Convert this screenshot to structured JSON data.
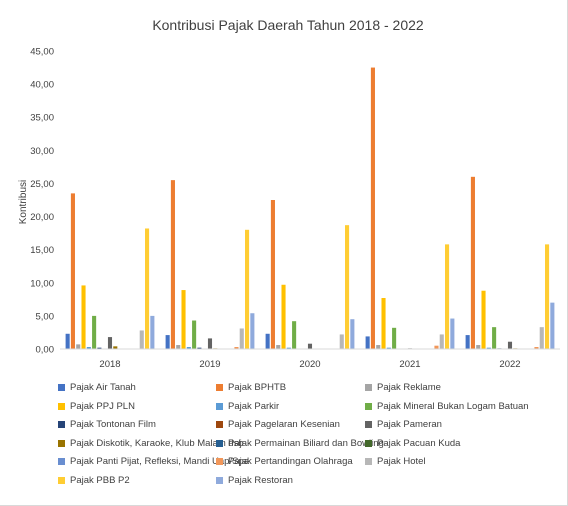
{
  "chart_data": {
    "type": "bar",
    "title": "Kontribusi Pajak Daerah Tahun 2018 - 2022",
    "xlabel": "",
    "ylabel": "Kontribusi",
    "ylim": [
      0,
      45
    ],
    "yticks": [
      "0,00",
      "5,00",
      "10,00",
      "15,00",
      "20,00",
      "25,00",
      "30,00",
      "35,00",
      "40,00",
      "45,00"
    ],
    "categories": [
      "2018",
      "2019",
      "2020",
      "2021",
      "2022"
    ],
    "grid": false,
    "legend_position": "bottom",
    "series": [
      {
        "name": "Pajak Air Tanah",
        "color": "#4472C4",
        "values": [
          2.3,
          2.1,
          2.3,
          1.9,
          2.1
        ]
      },
      {
        "name": "Pajak BPHTB",
        "color": "#ED7D31",
        "values": [
          23.5,
          25.5,
          22.5,
          42.5,
          26.0
        ]
      },
      {
        "name": "Pajak Reklame",
        "color": "#A5A5A5",
        "values": [
          0.7,
          0.6,
          0.6,
          0.6,
          0.6
        ]
      },
      {
        "name": "Pajak PPJ PLN",
        "color": "#FFC000",
        "values": [
          9.6,
          8.9,
          9.7,
          7.7,
          8.8
        ]
      },
      {
        "name": "Pajak Parkir",
        "color": "#5B9BD5",
        "values": [
          0.3,
          0.3,
          0.2,
          0.2,
          0.2
        ]
      },
      {
        "name": "Pajak Mineral Bukan Logam Batuan",
        "color": "#70AD47",
        "values": [
          5.0,
          4.3,
          4.2,
          3.2,
          3.3
        ]
      },
      {
        "name": "Pajak Tontonan Film",
        "color": "#264478",
        "values": [
          0.2,
          0.2,
          0.0,
          0.0,
          0.1
        ]
      },
      {
        "name": "Pajak Pagelaran Kesenian",
        "color": "#9E480E",
        "values": [
          0.0,
          0.0,
          0.0,
          0.0,
          0.0
        ]
      },
      {
        "name": "Pajak Pameran",
        "color": "#636363",
        "values": [
          1.8,
          1.6,
          0.8,
          0.1,
          1.1
        ]
      },
      {
        "name": "Pajak Diskotik, Karaoke, Klub Malam dsb",
        "color": "#997300",
        "values": [
          0.4,
          0.1,
          0.0,
          0.0,
          0.1
        ]
      },
      {
        "name": "Pajak Permainan Biliard dan Bowling",
        "color": "#255E91",
        "values": [
          0.0,
          0.0,
          0.0,
          0.0,
          0.0
        ]
      },
      {
        "name": "Pajak Pacuan Kuda",
        "color": "#43682B",
        "values": [
          0.0,
          0.0,
          0.0,
          0.0,
          0.0
        ]
      },
      {
        "name": "Pajak Panti Pijat, Refleksi, Mandi Uap/Spa",
        "color": "#698ED0",
        "values": [
          0.0,
          0.0,
          0.0,
          0.0,
          0.0
        ]
      },
      {
        "name": "Pajak Pertandingan Olahraga",
        "color": "#F1975A",
        "values": [
          0.0,
          0.3,
          0.0,
          0.5,
          0.3
        ]
      },
      {
        "name": "Pajak Hotel",
        "color": "#B7B7B7",
        "values": [
          2.8,
          3.1,
          2.2,
          2.2,
          3.3
        ]
      },
      {
        "name": "Pajak PBB P2",
        "color": "#FFCD33",
        "values": [
          18.2,
          18.0,
          18.7,
          15.8,
          15.8
        ]
      },
      {
        "name": "Pajak Restoran",
        "color": "#8FAADC",
        "values": [
          5.0,
          5.4,
          4.5,
          4.6,
          7.0
        ]
      }
    ]
  }
}
